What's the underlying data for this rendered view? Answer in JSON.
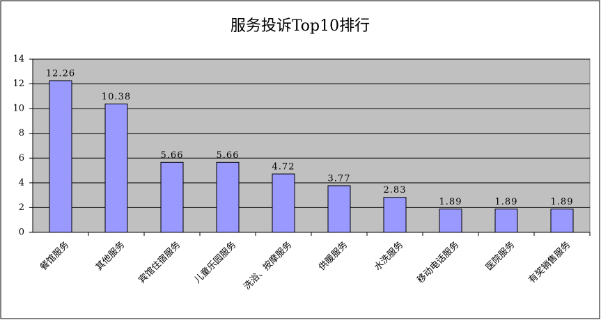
{
  "chart_data": {
    "type": "bar",
    "title": "服务投诉Top10排行",
    "categories": [
      "餐馆服务",
      "其他服务",
      "宾馆住宿服务",
      "儿童乐园服务",
      "洗浴、按摩服务",
      "供暖服务",
      "水洗服务",
      "移动电话服务",
      "医院服务",
      "有奖销售服务"
    ],
    "values": [
      12.26,
      10.38,
      5.66,
      5.66,
      4.72,
      3.77,
      2.83,
      1.89,
      1.89,
      1.89
    ],
    "color": "#9999ff",
    "ylim": [
      0,
      14
    ],
    "yticks": [
      0,
      2,
      4,
      6,
      8,
      10,
      12,
      14
    ],
    "grid": true
  }
}
